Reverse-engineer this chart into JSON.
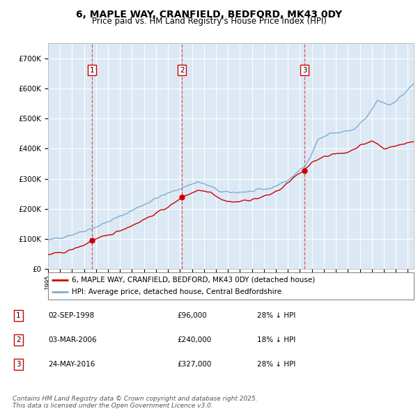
{
  "title": "6, MAPLE WAY, CRANFIELD, BEDFORD, MK43 0DY",
  "subtitle": "Price paid vs. HM Land Registry's House Price Index (HPI)",
  "ylim": [
    0,
    750000
  ],
  "xlim_start": 1995.0,
  "xlim_end": 2025.5,
  "bg_color": "#dce9f5",
  "grid_color": "#ffffff",
  "sale_color": "#cc0000",
  "hpi_color": "#7aadd4",
  "marker_vline_color": "#dd4444",
  "transactions": [
    {
      "num": 1,
      "date_label": "02-SEP-1998",
      "price": 96000,
      "year": 1998.67,
      "hpi_note": "28% ↓ HPI"
    },
    {
      "num": 2,
      "date_label": "03-MAR-2006",
      "price": 240000,
      "year": 2006.17,
      "hpi_note": "18% ↓ HPI"
    },
    {
      "num": 3,
      "date_label": "24-MAY-2016",
      "price": 327000,
      "year": 2016.39,
      "hpi_note": "28% ↓ HPI"
    }
  ],
  "legend_label_sale": "6, MAPLE WAY, CRANFIELD, BEDFORD, MK43 0DY (detached house)",
  "legend_label_hpi": "HPI: Average price, detached house, Central Bedfordshire",
  "footnote": "Contains HM Land Registry data © Crown copyright and database right 2025.\nThis data is licensed under the Open Government Licence v3.0.",
  "title_fontsize": 10,
  "subtitle_fontsize": 8.5,
  "tick_fontsize": 7.5,
  "legend_fontsize": 7.5,
  "annotation_fontsize": 7.5,
  "footnote_fontsize": 6.5,
  "ytick_labels": [
    "£0",
    "£100K",
    "£200K",
    "£300K",
    "£400K",
    "£500K",
    "£600K",
    "£700K"
  ],
  "ytick_values": [
    0,
    100000,
    200000,
    300000,
    400000,
    500000,
    600000,
    700000
  ]
}
